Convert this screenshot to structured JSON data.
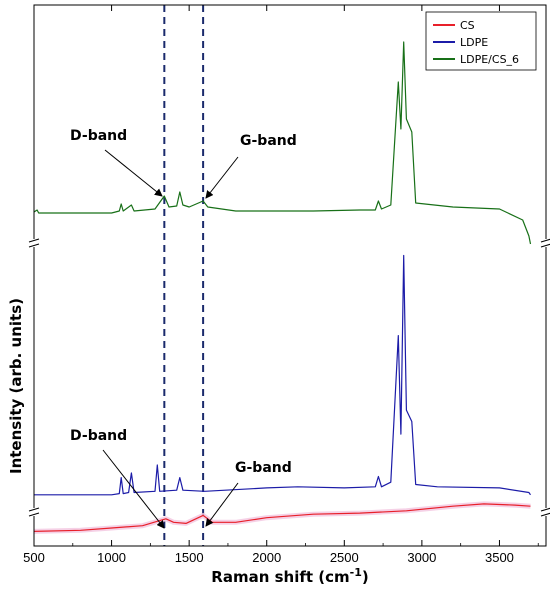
{
  "chart_data": {
    "type": "line",
    "title": "",
    "xlabel": "Raman shift (cm",
    "xlabel_sup": "-1",
    "xlabel_close": ")",
    "ylabel": "Intensity (arb. units)",
    "xlim": [
      500,
      3800
    ],
    "x_ticks": [
      "500",
      "1000",
      "1500",
      "2000",
      "2500",
      "3000",
      "3500"
    ],
    "y_ticks": [],
    "legend_position": "top-right",
    "grid": false,
    "vlines": [
      1340,
      1590
    ],
    "vline_color": "#1a2a6c",
    "annotations": [
      {
        "text": "D-band",
        "panel": "top",
        "x": 1340
      },
      {
        "text": "G-band",
        "panel": "top",
        "x": 1590
      },
      {
        "text": "D-band",
        "panel": "bottom",
        "x": 1340
      },
      {
        "text": "G-band",
        "panel": "bottom",
        "x": 1590
      }
    ],
    "series": [
      {
        "name": "CS",
        "color": "#e8202a",
        "panel": "bottom",
        "x": [
          500,
          800,
          1000,
          1200,
          1300,
          1350,
          1400,
          1480,
          1590,
          1650,
          1800,
          2000,
          2300,
          2600,
          2900,
          3200,
          3400,
          3600,
          3700
        ],
        "y": [
          4,
          5,
          7,
          9,
          13,
          15,
          12,
          11,
          18,
          12,
          12,
          16,
          19,
          20,
          22,
          26,
          28,
          27,
          26
        ]
      },
      {
        "name": "LDPE",
        "color": "#1c1ca8",
        "panel": "bottom",
        "x": [
          500,
          1000,
          1050,
          1062,
          1075,
          1110,
          1128,
          1145,
          1280,
          1295,
          1310,
          1420,
          1440,
          1460,
          1600,
          2000,
          2200,
          2500,
          2700,
          2720,
          2740,
          2800,
          2848,
          2865,
          2883,
          2900,
          2935,
          2960,
          3100,
          3500,
          3690,
          3700
        ],
        "y": [
          36,
          36,
          37,
          51,
          37,
          38,
          55,
          38,
          39,
          62,
          39,
          40,
          51,
          40,
          39,
          42,
          43,
          42,
          43,
          52,
          43,
          47,
          175,
          89,
          245,
          110,
          100,
          45,
          43,
          42,
          38,
          36
        ]
      },
      {
        "name": "LDPE/CS_6",
        "color": "#187018",
        "panel": "top",
        "x": [
          500,
          520,
          530,
          1000,
          1050,
          1062,
          1075,
          1128,
          1145,
          1280,
          1340,
          1370,
          1420,
          1440,
          1460,
          1500,
          1590,
          1620,
          1800,
          2300,
          2600,
          2700,
          2720,
          2740,
          2800,
          2848,
          2865,
          2883,
          2900,
          2935,
          2960,
          3200,
          3500,
          3650,
          3690,
          3700
        ],
        "y": [
          2,
          4,
          1,
          1,
          3,
          10,
          3,
          9,
          3,
          5,
          18,
          7,
          8,
          22,
          9,
          7,
          13,
          7,
          3,
          3,
          4,
          4,
          13,
          5,
          9,
          132,
          85,
          172,
          95,
          82,
          11,
          7,
          5,
          -6,
          -22,
          -30
        ]
      }
    ]
  }
}
